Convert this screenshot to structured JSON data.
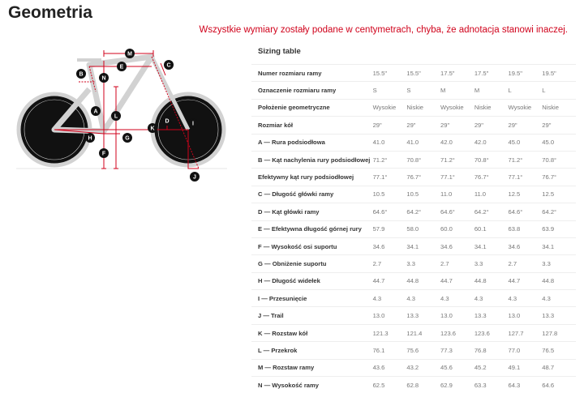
{
  "title": "Geometria",
  "note": "Wszystkie wymiary zostały podane w centymetrach, chyba, że adnotacja stanowi inaczej.",
  "table_title": "Sizing table",
  "rows": [
    {
      "label": "Numer rozmiaru ramy",
      "values": [
        "15.5\"",
        "15.5\"",
        "17.5\"",
        "17.5\"",
        "19.5\"",
        "19.5\""
      ]
    },
    {
      "label": "Oznaczenie rozmiaru ramy",
      "values": [
        "S",
        "S",
        "M",
        "M",
        "L",
        "L"
      ]
    },
    {
      "label": "Położenie geometryczne",
      "values": [
        "Wysokie",
        "Niskie",
        "Wysokie",
        "Niskie",
        "Wysokie",
        "Niskie"
      ]
    },
    {
      "label": "Rozmiar kół",
      "values": [
        "29\"",
        "29\"",
        "29\"",
        "29\"",
        "29\"",
        "29\""
      ]
    },
    {
      "label": "A — Rura podsiodłowa",
      "values": [
        "41.0",
        "41.0",
        "42.0",
        "42.0",
        "45.0",
        "45.0"
      ]
    },
    {
      "label": "B — Kąt nachylenia rury podsiodłowej",
      "values": [
        "71.2°",
        "70.8°",
        "71.2°",
        "70.8°",
        "71.2°",
        "70.8°"
      ]
    },
    {
      "label": "Efektywny kąt rury podsiodłowej",
      "values": [
        "77.1°",
        "76.7°",
        "77.1°",
        "76.7°",
        "77.1°",
        "76.7°"
      ]
    },
    {
      "label": "C — Długość główki ramy",
      "values": [
        "10.5",
        "10.5",
        "11.0",
        "11.0",
        "12.5",
        "12.5"
      ]
    },
    {
      "label": "D — Kąt główki ramy",
      "values": [
        "64.6°",
        "64.2°",
        "64.6°",
        "64.2°",
        "64.6°",
        "64.2°"
      ]
    },
    {
      "label": "E — Efektywna długość górnej rury",
      "values": [
        "57.9",
        "58.0",
        "60.0",
        "60.1",
        "63.8",
        "63.9"
      ]
    },
    {
      "label": "F — Wysokość osi suportu",
      "values": [
        "34.6",
        "34.1",
        "34.6",
        "34.1",
        "34.6",
        "34.1"
      ]
    },
    {
      "label": "G — Obniżenie suportu",
      "values": [
        "2.7",
        "3.3",
        "2.7",
        "3.3",
        "2.7",
        "3.3"
      ]
    },
    {
      "label": "H — Długość widełek",
      "values": [
        "44.7",
        "44.8",
        "44.7",
        "44.8",
        "44.7",
        "44.8"
      ]
    },
    {
      "label": "I — Przesunięcie",
      "values": [
        "4.3",
        "4.3",
        "4.3",
        "4.3",
        "4.3",
        "4.3"
      ]
    },
    {
      "label": "J — Trail",
      "values": [
        "13.0",
        "13.3",
        "13.0",
        "13.3",
        "13.0",
        "13.3"
      ]
    },
    {
      "label": "K — Rozstaw kół",
      "values": [
        "121.3",
        "121.4",
        "123.6",
        "123.6",
        "127.7",
        "127.8"
      ]
    },
    {
      "label": "L — Przekrok",
      "values": [
        "76.1",
        "75.6",
        "77.3",
        "76.8",
        "77.0",
        "76.5"
      ]
    },
    {
      "label": "M — Rozstaw ramy",
      "values": [
        "43.6",
        "43.2",
        "45.6",
        "45.2",
        "49.1",
        "48.7"
      ]
    },
    {
      "label": "N — Wysokość ramy",
      "values": [
        "62.5",
        "62.8",
        "62.9",
        "63.3",
        "64.3",
        "64.6"
      ]
    }
  ],
  "diagram_labels": [
    "M",
    "E",
    "C",
    "B",
    "N",
    "A",
    "L",
    "H",
    "G",
    "K",
    "D",
    "I",
    "F",
    "J"
  ],
  "colors": {
    "accent": "#d0021b",
    "bike": "#cfcfcf"
  }
}
